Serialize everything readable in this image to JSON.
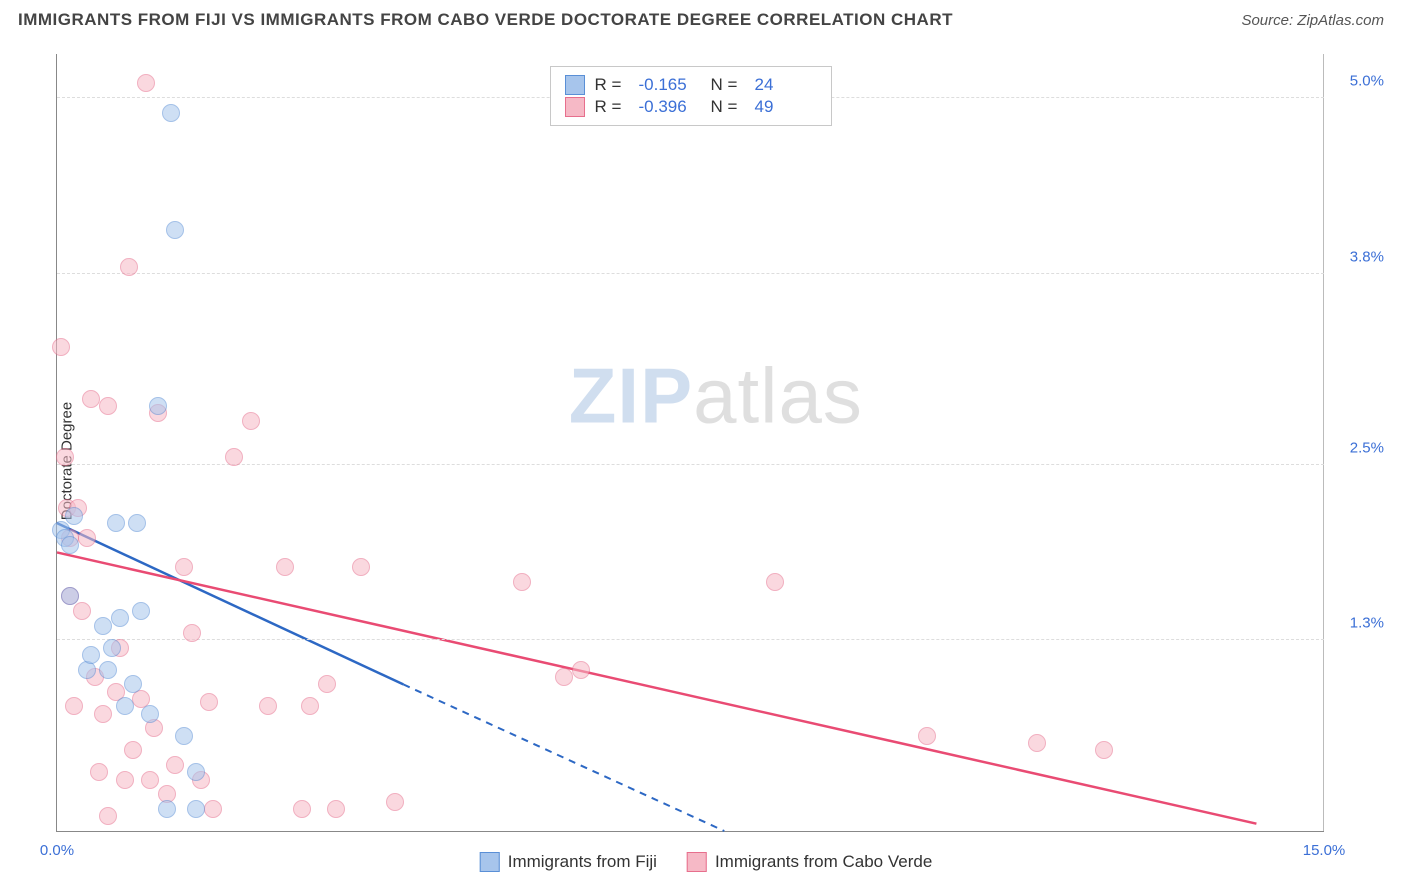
{
  "header": {
    "title": "IMMIGRANTS FROM FIJI VS IMMIGRANTS FROM CABO VERDE DOCTORATE DEGREE CORRELATION CHART",
    "source": "Source: ZipAtlas.com"
  },
  "chart": {
    "type": "scatter",
    "ylabel": "Doctorate Degree",
    "xlim": [
      0,
      15
    ],
    "ylim": [
      0,
      5.3
    ],
    "xtick_labels": [
      {
        "value": 0,
        "label": "0.0%"
      },
      {
        "value": 15,
        "label": "15.0%"
      }
    ],
    "ytick_labels": [
      {
        "value": 1.3,
        "label": "1.3%"
      },
      {
        "value": 2.5,
        "label": "2.5%"
      },
      {
        "value": 3.8,
        "label": "3.8%"
      },
      {
        "value": 5.0,
        "label": "5.0%"
      }
    ],
    "series": [
      {
        "name": "Immigrants from Fiji",
        "key": "fiji",
        "fill": "#a7c5ec",
        "stroke": "#5a8fd6",
        "line_color": "#2d68c4",
        "marker_radius": 9,
        "fill_opacity": 0.55,
        "R": "-0.165",
        "N": "24",
        "trend": {
          "x1": 0,
          "y1": 2.1,
          "x2": 4.1,
          "y2": 1.0,
          "extend_x2": 7.9,
          "extend_y2": 0
        },
        "points": [
          [
            0.05,
            2.05
          ],
          [
            0.1,
            2.0
          ],
          [
            0.15,
            1.95
          ],
          [
            0.15,
            1.6
          ],
          [
            0.2,
            2.15
          ],
          [
            0.35,
            1.1
          ],
          [
            0.4,
            1.2
          ],
          [
            0.55,
            1.4
          ],
          [
            0.6,
            1.1
          ],
          [
            0.65,
            1.25
          ],
          [
            0.7,
            2.1
          ],
          [
            0.75,
            1.45
          ],
          [
            0.8,
            0.85
          ],
          [
            0.9,
            1.0
          ],
          [
            0.95,
            2.1
          ],
          [
            1.0,
            1.5
          ],
          [
            1.1,
            0.8
          ],
          [
            1.2,
            2.9
          ],
          [
            1.3,
            0.15
          ],
          [
            1.35,
            4.9
          ],
          [
            1.4,
            4.1
          ],
          [
            1.5,
            0.65
          ],
          [
            1.65,
            0.4
          ],
          [
            1.65,
            0.15
          ]
        ]
      },
      {
        "name": "Immigrants from Cabo Verde",
        "key": "cabo",
        "fill": "#f6b9c6",
        "stroke": "#e76f8d",
        "line_color": "#e94b73",
        "marker_radius": 9,
        "fill_opacity": 0.55,
        "R": "-0.396",
        "N": "49",
        "trend": {
          "x1": 0,
          "y1": 1.9,
          "x2": 14.2,
          "y2": 0.05
        },
        "points": [
          [
            0.05,
            3.3
          ],
          [
            0.1,
            2.55
          ],
          [
            0.12,
            2.2
          ],
          [
            0.15,
            2.0
          ],
          [
            0.15,
            1.6
          ],
          [
            0.2,
            0.85
          ],
          [
            0.25,
            2.2
          ],
          [
            0.3,
            1.5
          ],
          [
            0.35,
            2.0
          ],
          [
            0.4,
            2.95
          ],
          [
            0.45,
            1.05
          ],
          [
            0.5,
            0.4
          ],
          [
            0.55,
            0.8
          ],
          [
            0.6,
            2.9
          ],
          [
            0.7,
            0.95
          ],
          [
            0.75,
            1.25
          ],
          [
            0.8,
            0.35
          ],
          [
            0.85,
            3.85
          ],
          [
            0.9,
            0.55
          ],
          [
            1.0,
            0.9
          ],
          [
            1.05,
            5.1
          ],
          [
            1.1,
            0.35
          ],
          [
            1.15,
            0.7
          ],
          [
            1.2,
            2.85
          ],
          [
            1.3,
            0.25
          ],
          [
            1.4,
            0.45
          ],
          [
            1.5,
            1.8
          ],
          [
            1.6,
            1.35
          ],
          [
            1.7,
            0.35
          ],
          [
            1.8,
            0.88
          ],
          [
            1.85,
            0.15
          ],
          [
            2.1,
            2.55
          ],
          [
            2.3,
            2.8
          ],
          [
            2.5,
            0.85
          ],
          [
            2.7,
            1.8
          ],
          [
            2.9,
            0.15
          ],
          [
            3.0,
            0.85
          ],
          [
            3.2,
            1.0
          ],
          [
            3.3,
            0.15
          ],
          [
            3.6,
            1.8
          ],
          [
            4.0,
            0.2
          ],
          [
            5.5,
            1.7
          ],
          [
            6.0,
            1.05
          ],
          [
            6.2,
            1.1
          ],
          [
            8.5,
            1.7
          ],
          [
            10.3,
            0.65
          ],
          [
            11.6,
            0.6
          ],
          [
            12.4,
            0.55
          ],
          [
            0.6,
            0.1
          ]
        ]
      }
    ],
    "watermark": {
      "zip": "ZIP",
      "atlas": "atlas"
    },
    "legend_bottom": [
      "Immigrants from Fiji",
      "Immigrants from Cabo Verde"
    ]
  }
}
